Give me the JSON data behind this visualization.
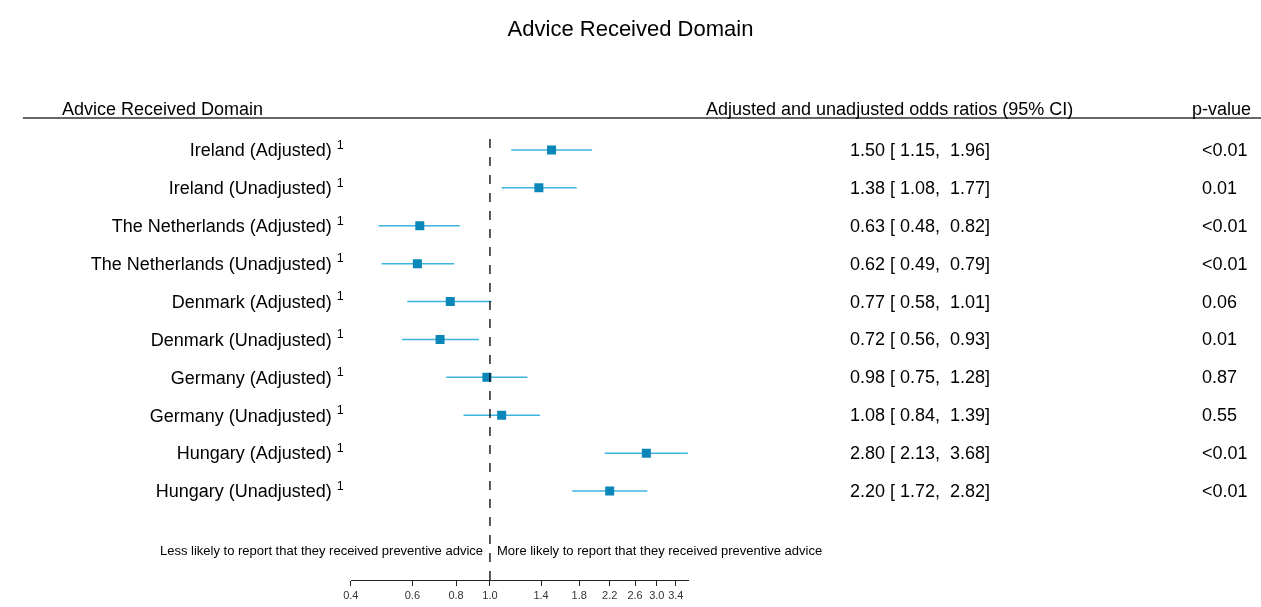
{
  "chart_data": {
    "type": "scatter",
    "orientation": "horizontal",
    "title": "Advice Received Domain",
    "categories": [
      "Ireland (Adjusted) $^{1}$",
      "Ireland (Unadjusted) $^{1}$",
      "The Netherlands (Adjusted) $^{1}$",
      "The Netherlands (Unadjusted) $^{1}$",
      "Denmark (Adjusted) $^{1}$",
      "Denmark (Unadjusted) $^{1}$",
      "Germany (Adjusted) $^{1}$",
      "Germany (Unadjusted) $^{1}$",
      "Hungary (Adjusted) $^{1}$",
      "Hungary (Unadjusted) $^{1}$"
    ],
    "values": [
      1.5,
      1.38,
      0.63,
      0.62,
      0.77,
      0.72,
      0.98,
      1.08,
      2.8,
      2.2
    ],
    "errors": [
      [
        1.15,
        1.96
      ],
      [
        1.08,
        1.77
      ],
      [
        0.48,
        0.82
      ],
      [
        0.49,
        0.79
      ],
      [
        0.58,
        1.01
      ],
      [
        0.56,
        0.93
      ],
      [
        0.75,
        1.28
      ],
      [
        0.84,
        1.39
      ],
      [
        2.13,
        3.68
      ],
      [
        1.72,
        2.82
      ]
    ],
    "value_labels": [
      "1.50 [ 1.15,  1.96]",
      "1.38 [ 1.08,  1.77]",
      "0.63 [ 0.48,  0.82]",
      "0.62 [ 0.49,  0.79]",
      "0.77 [ 0.58,  1.01]",
      "0.72 [ 0.56,  0.93]",
      "0.98 [ 0.75,  1.28]",
      "1.08 [ 0.84,  1.39]",
      "2.80 [ 2.13,  3.68]",
      "2.20 [ 1.72,  2.82]"
    ],
    "color": "#0a86b8",
    "marker": "square",
    "log": "x",
    "xlim": [
      0.4,
      3.7
    ],
    "xticks": [
      {
        "value": 0.4,
        "label": "0.4"
      },
      {
        "value": 0.6,
        "label": "0.6"
      },
      {
        "value": 0.8,
        "label": "0.8"
      },
      {
        "value": 1.0,
        "label": "1.0"
      },
      {
        "value": 1.4,
        "label": "1.4"
      },
      {
        "value": 1.8,
        "label": "1.8"
      },
      {
        "value": 2.2,
        "label": "2.2"
      },
      {
        "value": 2.6,
        "label": "2.6"
      },
      {
        "value": 3.0,
        "label": "3.0"
      },
      {
        "value": 3.4,
        "label": "3.4"
      }
    ],
    "legend": false,
    "ref_lines": [
      {
        "axis": "x",
        "value": 1.0,
        "line_style": "dashed",
        "color": "#000000"
      }
    ],
    "annotations": [
      "Advice Received Domain",
      "Adjusted and unadjusted odds ratios (95% CI)",
      "p-value",
      "Less likely to report that they received preventive advice",
      "More likely to report that they received preventive advice",
      "<0.01",
      "0.01",
      "<0.01",
      "<0.01",
      "0.06",
      "0.01",
      "0.87",
      "0.55",
      "<0.01",
      "<0.01"
    ]
  }
}
